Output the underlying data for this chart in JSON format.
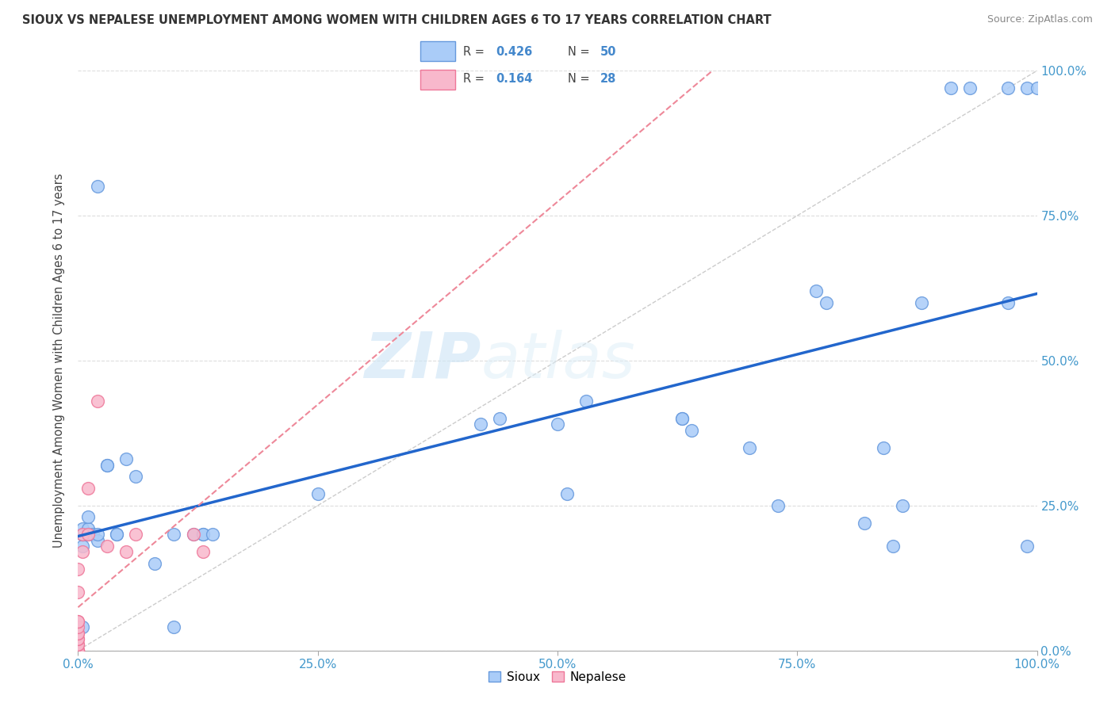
{
  "title": "SIOUX VS NEPALESE UNEMPLOYMENT AMONG WOMEN WITH CHILDREN AGES 6 TO 17 YEARS CORRELATION CHART",
  "source": "Source: ZipAtlas.com",
  "ylabel": "Unemployment Among Women with Children Ages 6 to 17 years",
  "legend_sioux_label": "Sioux",
  "legend_nepalese_label": "Nepalese",
  "sioux_R": "0.426",
  "sioux_N": "50",
  "nepalese_R": "0.164",
  "nepalese_N": "28",
  "xlim": [
    0,
    1.0
  ],
  "ylim": [
    0,
    1.0
  ],
  "xticks": [
    0.0,
    0.25,
    0.5,
    0.75,
    1.0
  ],
  "yticks": [
    0.0,
    0.25,
    0.5,
    0.75,
    1.0
  ],
  "xticklabels": [
    "0.0%",
    "25.0%",
    "50.0%",
    "75.0%",
    "100.0%"
  ],
  "yticklabels": [
    "0.0%",
    "25.0%",
    "50.0%",
    "75.0%",
    "100.0%"
  ],
  "sioux_color": "#aaccf8",
  "sioux_edge_color": "#6699dd",
  "nepalese_color": "#f8b8cc",
  "nepalese_edge_color": "#ee7799",
  "trend_sioux_color": "#2266cc",
  "trend_nepalese_color": "#ee8899",
  "diagonal_color": "#cccccc",
  "watermark_zip": "ZIP",
  "watermark_atlas": "atlas",
  "background_color": "#ffffff",
  "grid_color": "#dddddd",
  "sioux_x": [
    0.005,
    0.005,
    0.005,
    0.005,
    0.005,
    0.01,
    0.01,
    0.01,
    0.015,
    0.02,
    0.02,
    0.02,
    0.03,
    0.03,
    0.04,
    0.04,
    0.05,
    0.06,
    0.08,
    0.1,
    0.1,
    0.12,
    0.13,
    0.13,
    0.14,
    0.25,
    0.42,
    0.44,
    0.5,
    0.51,
    0.53,
    0.63,
    0.63,
    0.64,
    0.7,
    0.73,
    0.77,
    0.78,
    0.82,
    0.84,
    0.85,
    0.86,
    0.88,
    0.91,
    0.93,
    0.97,
    0.97,
    0.99,
    0.99,
    1.0
  ],
  "sioux_y": [
    0.18,
    0.2,
    0.2,
    0.21,
    0.04,
    0.2,
    0.21,
    0.23,
    0.2,
    0.19,
    0.2,
    0.8,
    0.32,
    0.32,
    0.2,
    0.2,
    0.33,
    0.3,
    0.15,
    0.04,
    0.2,
    0.2,
    0.2,
    0.2,
    0.2,
    0.27,
    0.39,
    0.4,
    0.39,
    0.27,
    0.43,
    0.4,
    0.4,
    0.38,
    0.35,
    0.25,
    0.62,
    0.6,
    0.22,
    0.35,
    0.18,
    0.25,
    0.6,
    0.97,
    0.97,
    0.97,
    0.6,
    0.18,
    0.97,
    0.97
  ],
  "nepalese_x": [
    0.0,
    0.0,
    0.0,
    0.0,
    0.0,
    0.0,
    0.0,
    0.0,
    0.0,
    0.0,
    0.0,
    0.0,
    0.0,
    0.0,
    0.0,
    0.0,
    0.0,
    0.0,
    0.005,
    0.005,
    0.01,
    0.01,
    0.02,
    0.03,
    0.05,
    0.06,
    0.12,
    0.13
  ],
  "nepalese_y": [
    0.0,
    0.0,
    0.0,
    0.0,
    0.0,
    0.0,
    0.0,
    0.01,
    0.01,
    0.02,
    0.02,
    0.03,
    0.03,
    0.04,
    0.05,
    0.05,
    0.1,
    0.14,
    0.17,
    0.2,
    0.2,
    0.28,
    0.43,
    0.18,
    0.17,
    0.2,
    0.2,
    0.17
  ]
}
